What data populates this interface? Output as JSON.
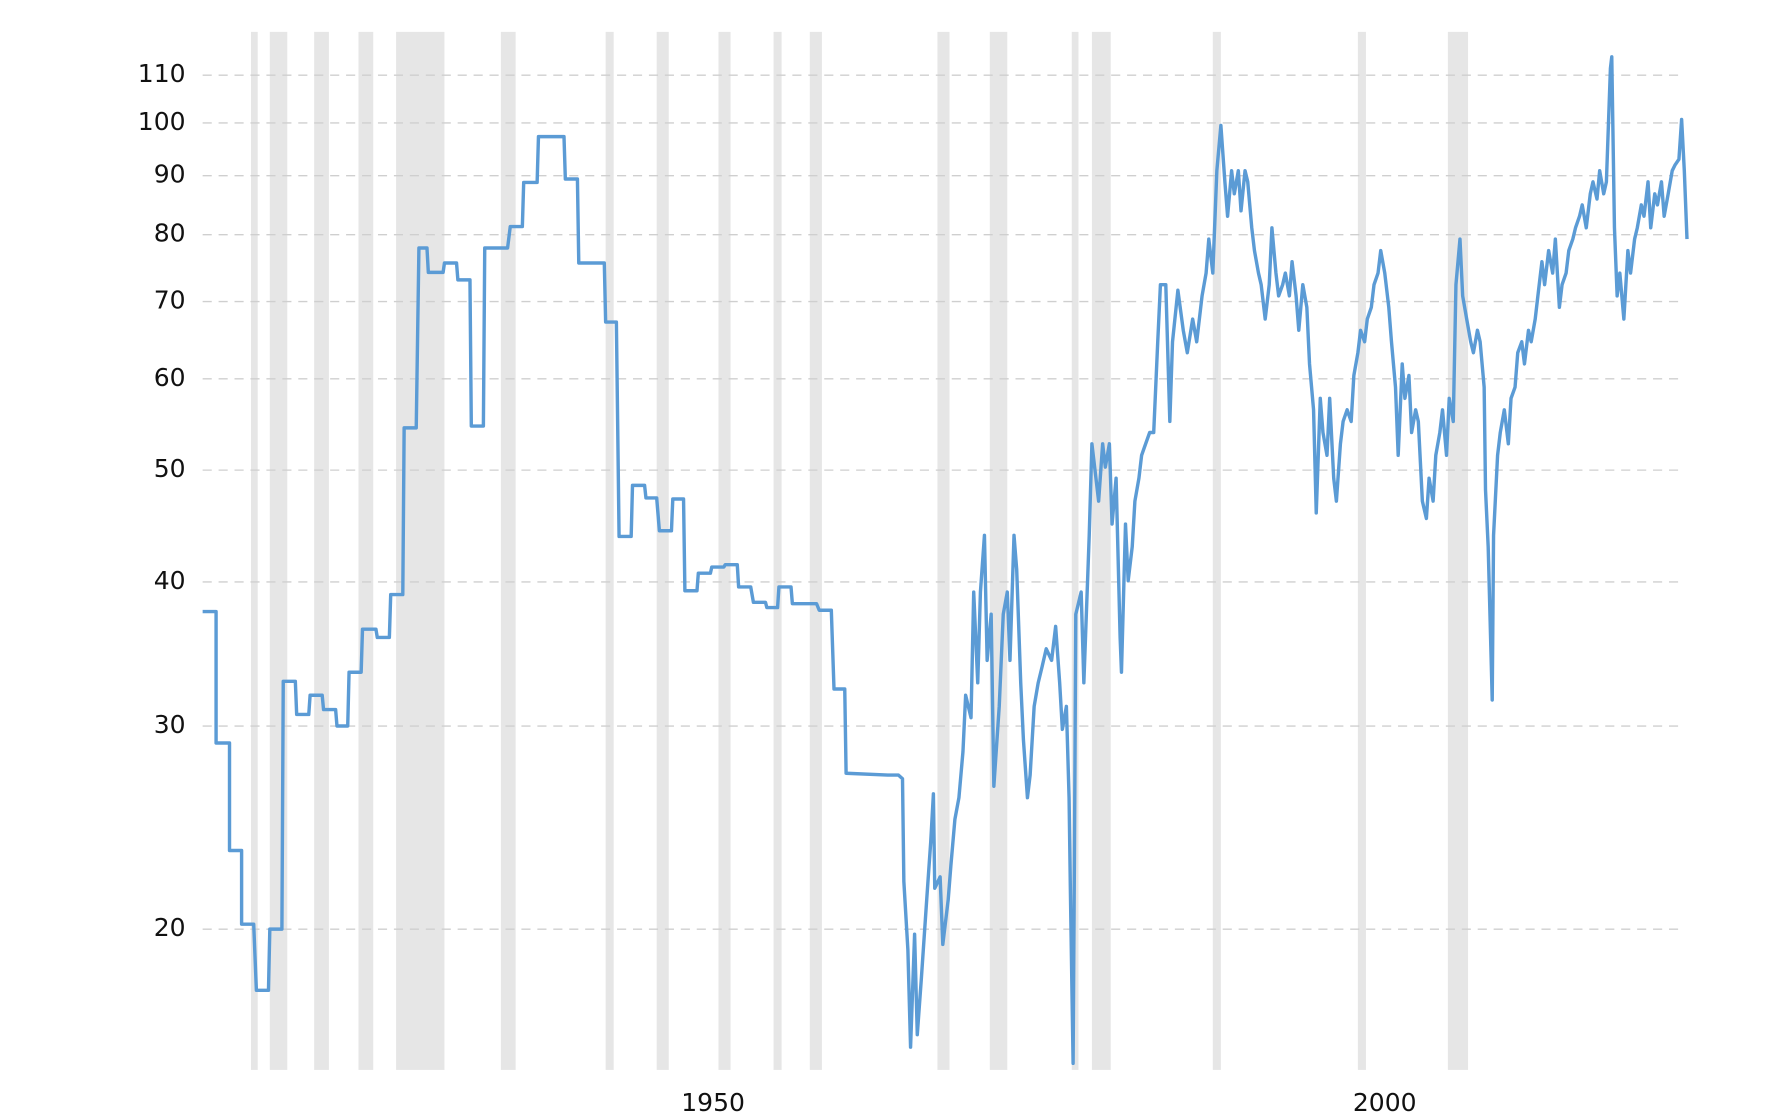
{
  "chart_data": {
    "type": "line",
    "yscale": "log",
    "grid": true,
    "xlim": [
      1912,
      2022.6
    ],
    "xticks": [
      1950,
      2000
    ],
    "ylim": [
      15.1,
      116.7
    ],
    "yticks": [
      20,
      30,
      40,
      50,
      60,
      70,
      80,
      90,
      100,
      110
    ],
    "recession_color": "#e6e6e6",
    "recessions": [
      [
        1915.6,
        1916.1
      ],
      [
        1917.0,
        1918.3
      ],
      [
        1920.3,
        1921.4
      ],
      [
        1923.6,
        1924.7
      ],
      [
        1926.4,
        1930.0
      ],
      [
        1934.2,
        1935.3
      ],
      [
        1942.0,
        1942.6
      ],
      [
        1945.8,
        1946.7
      ],
      [
        1950.4,
        1951.3
      ],
      [
        1954.5,
        1955.1
      ],
      [
        1957.2,
        1958.1
      ],
      [
        1966.7,
        1967.6
      ],
      [
        1970.6,
        1971.9
      ],
      [
        1976.7,
        1977.2
      ],
      [
        1978.2,
        1979.6
      ],
      [
        1987.2,
        1987.8
      ],
      [
        1998.0,
        1998.6
      ],
      [
        2004.7,
        2006.2
      ]
    ],
    "x": [
      1912.0,
      1913.0,
      1913.0,
      1914.0,
      1914.0,
      1914.9,
      1914.9,
      1915.8,
      1916.0,
      1916.9,
      1917.0,
      1917.9,
      1918.0,
      1918.9,
      1919.0,
      1919.9,
      1920.0,
      1920.9,
      1921.0,
      1921.9,
      1922.0,
      1922.8,
      1922.9,
      1923.8,
      1923.9,
      1924.9,
      1925.0,
      1925.9,
      1926.0,
      1926.9,
      1927.0,
      1927.9,
      1928.1,
      1928.7,
      1928.8,
      1929.9,
      1930.0,
      1930.9,
      1931.0,
      1931.9,
      1932.0,
      1932.9,
      1933.0,
      1934.7,
      1934.9,
      1935.8,
      1935.9,
      1936.9,
      1937.0,
      1938.9,
      1939.0,
      1939.9,
      1940.0,
      1941.9,
      1942.0,
      1942.8,
      1943.0,
      1943.9,
      1944.0,
      1944.9,
      1945.0,
      1945.8,
      1946.0,
      1946.9,
      1947.0,
      1947.8,
      1947.9,
      1948.8,
      1948.9,
      1949.8,
      1949.9,
      1950.8,
      1950.9,
      1951.8,
      1951.9,
      1952.8,
      1953.0,
      1953.9,
      1954.0,
      1954.8,
      1954.9,
      1955.8,
      1955.9,
      1957.7,
      1957.9,
      1958.8,
      1959.0,
      1959.8,
      1959.9,
      1963.0,
      1963.8,
      1964.1,
      1964.2,
      1964.5,
      1964.7,
      1965.0,
      1965.2,
      1965.5,
      1965.9,
      1966.2,
      1966.4,
      1966.5,
      1966.9,
      1967.1,
      1967.5,
      1967.7,
      1968.0,
      1968.3,
      1968.6,
      1968.8,
      1969.2,
      1969.4,
      1969.7,
      1969.9,
      1970.2,
      1970.4,
      1970.7,
      1970.9,
      1971.3,
      1971.6,
      1971.9,
      1972.1,
      1972.4,
      1972.6,
      1972.9,
      1973.1,
      1973.4,
      1973.6,
      1973.9,
      1974.2,
      1974.5,
      1974.8,
      1975.2,
      1975.5,
      1975.8,
      1976.0,
      1976.3,
      1976.5,
      1976.6,
      1976.8,
      1976.9,
      1977.0,
      1977.4,
      1977.6,
      1978.0,
      1978.2,
      1978.5,
      1978.7,
      1979.0,
      1979.2,
      1979.5,
      1979.7,
      1980.0,
      1980.3,
      1980.4,
      1980.7,
      1980.9,
      1981.2,
      1981.4,
      1981.7,
      1981.9,
      1982.2,
      1982.5,
      1982.8,
      1983.1,
      1983.3,
      1983.7,
      1984.0,
      1984.2,
      1984.6,
      1985.0,
      1985.3,
      1985.7,
      1986.0,
      1986.4,
      1986.7,
      1986.9,
      1987.2,
      1987.5,
      1987.8,
      1988.1,
      1988.3,
      1988.6,
      1988.8,
      1989.1,
      1989.3,
      1989.6,
      1989.8,
      1990.1,
      1990.3,
      1990.6,
      1990.8,
      1991.1,
      1991.4,
      1991.6,
      1991.9,
      1992.1,
      1992.4,
      1992.6,
      1992.9,
      1993.1,
      1993.4,
      1993.6,
      1993.9,
      1994.2,
      1994.4,
      1994.7,
      1994.9,
      1995.2,
      1995.4,
      1995.7,
      1995.9,
      1996.2,
      1996.4,
      1996.7,
      1996.9,
      1997.2,
      1997.5,
      1997.7,
      1998.0,
      1998.2,
      1998.5,
      1998.7,
      1999.0,
      1999.2,
      1999.5,
      1999.7,
      2000.0,
      2000.3,
      2000.5,
      2000.8,
      2001.0,
      2001.3,
      2001.5,
      2001.8,
      2002.0,
      2002.3,
      2002.5,
      2002.8,
      2003.1,
      2003.3,
      2003.6,
      2003.8,
      2004.1,
      2004.3,
      2004.6,
      2004.8,
      2005.1,
      2005.3,
      2005.6,
      2005.8,
      2006.1,
      2006.4,
      2006.6,
      2006.9,
      2007.1,
      2007.4,
      2007.5,
      2007.7,
      2008.0,
      2008.1,
      2008.4,
      2008.6,
      2008.9,
      2009.2,
      2009.4,
      2009.7,
      2009.9,
      2010.2,
      2010.4,
      2010.7,
      2010.9,
      2011.2,
      2011.4,
      2011.7,
      2011.9,
      2012.2,
      2012.5,
      2012.7,
      2013.0,
      2013.2,
      2013.5,
      2013.7,
      2014.0,
      2014.2,
      2014.5,
      2014.7,
      2015.0,
      2015.3,
      2015.5,
      2015.8,
      2016.0,
      2016.3,
      2016.5,
      2016.8,
      2016.9,
      2017.1,
      2017.3,
      2017.5,
      2017.8,
      2018.1,
      2018.3,
      2018.6,
      2018.8,
      2019.1,
      2019.3,
      2019.6,
      2019.8,
      2020.1,
      2020.3,
      2020.6,
      2020.8,
      2021.1,
      2021.4,
      2021.6,
      2021.9,
      2022.1,
      2022.3,
      2022.5
    ],
    "series": [
      {
        "color": "#5b9bd5",
        "values": [
          37.7,
          37.7,
          29.0,
          29.0,
          23.4,
          23.4,
          20.2,
          20.2,
          17.7,
          17.7,
          20.0,
          20.0,
          32.8,
          32.8,
          30.7,
          30.7,
          31.9,
          31.9,
          31.0,
          31.0,
          30.0,
          30.0,
          33.4,
          33.4,
          36.4,
          36.4,
          35.8,
          35.8,
          39.0,
          39.0,
          54.4,
          54.4,
          77.9,
          77.9,
          74.2,
          74.2,
          75.6,
          75.6,
          73.1,
          73.1,
          54.6,
          54.6,
          77.9,
          77.9,
          81.3,
          81.3,
          88.8,
          88.8,
          97.3,
          97.3,
          89.4,
          89.4,
          75.6,
          75.6,
          67.2,
          67.2,
          43.8,
          43.8,
          48.5,
          48.5,
          47.3,
          47.3,
          44.3,
          44.3,
          47.2,
          47.2,
          39.3,
          39.3,
          40.7,
          40.7,
          41.2,
          41.2,
          41.4,
          41.4,
          39.6,
          39.6,
          38.4,
          38.4,
          38.0,
          38.0,
          39.6,
          39.6,
          38.3,
          38.3,
          37.8,
          37.8,
          32.3,
          32.3,
          27.3,
          27.2,
          27.2,
          27.0,
          22.0,
          19.2,
          15.8,
          19.8,
          16.2,
          18.1,
          21.2,
          23.8,
          26.2,
          21.7,
          22.2,
          19.4,
          21.2,
          22.7,
          24.9,
          26.0,
          28.5,
          31.9,
          30.5,
          39.2,
          32.7,
          39.2,
          43.9,
          34.2,
          37.5,
          26.6,
          31.2,
          37.5,
          39.2,
          34.2,
          43.9,
          41.0,
          32.7,
          29.2,
          26.0,
          27.2,
          31.2,
          32.7,
          33.8,
          35.0,
          34.2,
          36.6,
          32.7,
          29.8,
          31.2,
          26.0,
          21.5,
          15.3,
          23.2,
          37.5,
          39.2,
          32.7,
          43.9,
          52.7,
          49.2,
          47.0,
          52.7,
          50.3,
          52.7,
          44.9,
          49.2,
          35.8,
          33.4,
          44.9,
          40.1,
          42.9,
          47.0,
          49.2,
          51.5,
          52.7,
          53.9,
          53.9,
          64.6,
          72.4,
          72.4,
          55.1,
          64.6,
          71.6,
          66.1,
          63.2,
          67.6,
          64.6,
          70.8,
          74.1,
          79.3,
          74.1,
          90.9,
          99.5,
          88.9,
          83.0,
          90.9,
          86.8,
          90.9,
          83.9,
          90.9,
          88.9,
          81.1,
          77.5,
          74.1,
          72.4,
          67.6,
          72.4,
          81.1,
          74.1,
          70.8,
          72.4,
          74.1,
          70.8,
          75.8,
          70.8,
          66.1,
          72.4,
          69.2,
          61.8,
          56.4,
          45.9,
          57.7,
          53.9,
          51.5,
          57.7,
          49.2,
          47.0,
          52.7,
          55.1,
          56.4,
          55.1,
          60.4,
          63.2,
          66.1,
          64.6,
          67.6,
          69.2,
          72.4,
          74.1,
          77.5,
          74.1,
          69.2,
          64.6,
          59.0,
          51.5,
          61.8,
          57.7,
          60.4,
          53.9,
          56.4,
          55.1,
          47.0,
          45.4,
          49.2,
          47.0,
          51.5,
          53.9,
          56.4,
          51.5,
          57.7,
          55.1,
          72.4,
          79.3,
          70.8,
          67.6,
          64.6,
          63.2,
          66.1,
          64.6,
          59.0,
          48.1,
          42.9,
          31.6,
          43.9,
          51.5,
          53.9,
          56.4,
          52.7,
          57.7,
          59.0,
          63.2,
          64.6,
          61.8,
          66.1,
          64.6,
          67.6,
          70.8,
          75.8,
          72.4,
          77.5,
          74.1,
          79.3,
          69.2,
          72.4,
          74.1,
          77.5,
          79.3,
          81.1,
          83.0,
          84.9,
          81.1,
          86.8,
          88.9,
          85.9,
          90.9,
          86.8,
          88.9,
          111.5,
          114.1,
          81.1,
          70.8,
          74.1,
          67.6,
          77.5,
          74.1,
          79.3,
          81.1,
          84.9,
          83.0,
          88.9,
          81.1,
          86.8,
          84.9,
          88.9,
          83.0,
          86.8,
          90.9,
          91.9,
          93.0,
          100.7,
          90.9,
          79.3
        ]
      }
    ]
  }
}
